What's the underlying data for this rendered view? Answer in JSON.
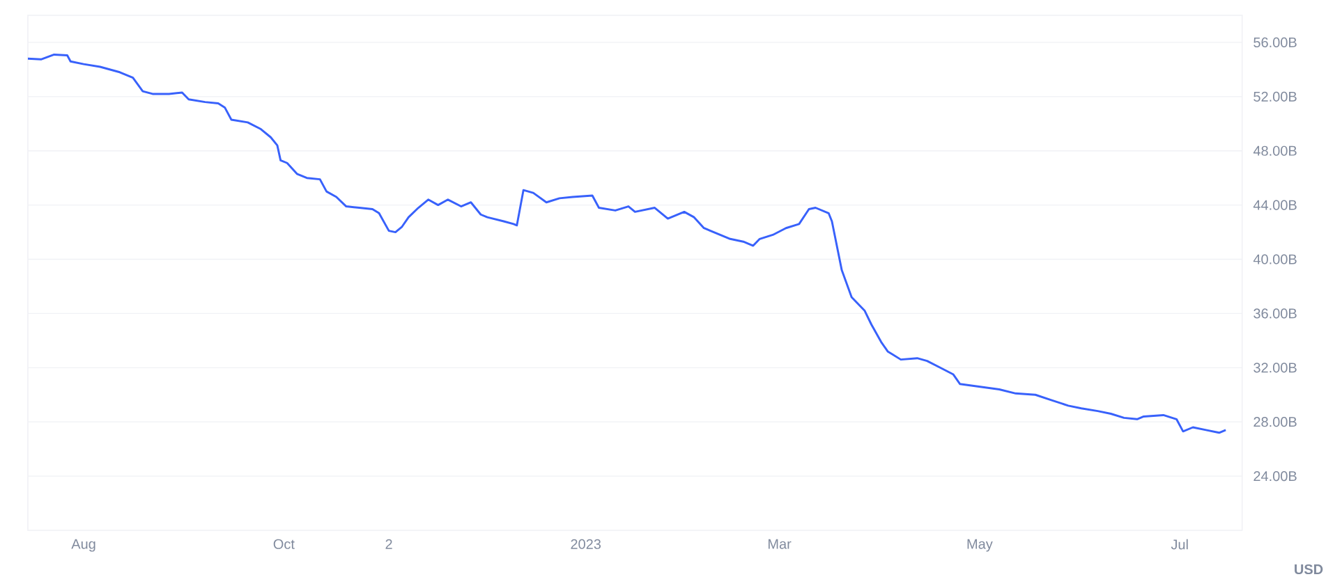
{
  "chart_data": {
    "type": "line",
    "ylabel": "USD",
    "grid": "y",
    "marker": "none",
    "line_style": "solid",
    "xlim": [
      "2022-07-15",
      "2023-07-20"
    ],
    "ylim": [
      20,
      58
    ],
    "xticks": [
      {
        "value": "2022-08-01",
        "label": "Aug"
      },
      {
        "value": "2022-10-01",
        "label": "Oct"
      },
      {
        "value": "2022-11-02",
        "label": "2"
      },
      {
        "value": "2023-01-01",
        "label": "2023"
      },
      {
        "value": "2023-03-01",
        "label": "Mar"
      },
      {
        "value": "2023-05-01",
        "label": "May"
      },
      {
        "value": "2023-07-01",
        "label": "Jul"
      }
    ],
    "yticks": [
      {
        "value": 24,
        "label": "24.00B"
      },
      {
        "value": 28,
        "label": "28.00B"
      },
      {
        "value": 32,
        "label": "32.00B"
      },
      {
        "value": 36,
        "label": "36.00B"
      },
      {
        "value": 40,
        "label": "40.00B"
      },
      {
        "value": 44,
        "label": "44.00B"
      },
      {
        "value": 48,
        "label": "48.00B"
      },
      {
        "value": 52,
        "label": "52.00B"
      },
      {
        "value": 56,
        "label": "56.00B"
      }
    ],
    "x": [
      "2022-07-15",
      "2022-07-19",
      "2022-07-23",
      "2022-07-27",
      "2022-07-28",
      "2022-08-01",
      "2022-08-06",
      "2022-08-12",
      "2022-08-16",
      "2022-08-19",
      "2022-08-22",
      "2022-08-27",
      "2022-08-31",
      "2022-09-02",
      "2022-09-07",
      "2022-09-11",
      "2022-09-13",
      "2022-09-15",
      "2022-09-20",
      "2022-09-24",
      "2022-09-27",
      "2022-09-29",
      "2022-09-30",
      "2022-10-02",
      "2022-10-05",
      "2022-10-08",
      "2022-10-12",
      "2022-10-14",
      "2022-10-17",
      "2022-10-20",
      "2022-10-24",
      "2022-10-28",
      "2022-10-30",
      "2022-11-02",
      "2022-11-04",
      "2022-11-06",
      "2022-11-08",
      "2022-11-11",
      "2022-11-14",
      "2022-11-17",
      "2022-11-20",
      "2022-11-24",
      "2022-11-27",
      "2022-11-30",
      "2022-12-02",
      "2022-12-07",
      "2022-12-10",
      "2022-12-11",
      "2022-12-13",
      "2022-12-16",
      "2022-12-20",
      "2022-12-24",
      "2022-12-28",
      "2023-01-03",
      "2023-01-05",
      "2023-01-10",
      "2023-01-14",
      "2023-01-16",
      "2023-01-22",
      "2023-01-26",
      "2023-01-31",
      "2023-02-03",
      "2023-02-06",
      "2023-02-10",
      "2023-02-14",
      "2023-02-18",
      "2023-02-21",
      "2023-02-23",
      "2023-02-27",
      "2023-03-03",
      "2023-03-07",
      "2023-03-10",
      "2023-03-12",
      "2023-03-16",
      "2023-03-17",
      "2023-03-20",
      "2023-03-23",
      "2023-03-27",
      "2023-03-29",
      "2023-04-01",
      "2023-04-03",
      "2023-04-07",
      "2023-04-12",
      "2023-04-15",
      "2023-04-19",
      "2023-04-23",
      "2023-04-25",
      "2023-05-01",
      "2023-05-07",
      "2023-05-12",
      "2023-05-18",
      "2023-05-23",
      "2023-05-28",
      "2023-06-01",
      "2023-06-06",
      "2023-06-10",
      "2023-06-14",
      "2023-06-18",
      "2023-06-20",
      "2023-06-26",
      "2023-06-30",
      "2023-07-02",
      "2023-07-05",
      "2023-07-09",
      "2023-07-13",
      "2023-07-15"
    ],
    "series": [
      {
        "color": "#3861fb",
        "values": [
          54.8,
          54.75,
          55.1,
          55.05,
          54.6,
          54.4,
          54.2,
          53.8,
          53.4,
          52.4,
          52.2,
          52.2,
          52.3,
          51.8,
          51.6,
          51.5,
          51.2,
          50.3,
          50.1,
          49.6,
          49.0,
          48.4,
          47.3,
          47.1,
          46.3,
          46.0,
          45.9,
          45.0,
          44.6,
          43.9,
          43.8,
          43.7,
          43.4,
          42.1,
          42.0,
          42.4,
          43.1,
          43.8,
          44.4,
          44.0,
          44.4,
          43.9,
          44.2,
          43.3,
          43.1,
          42.8,
          42.6,
          42.5,
          45.1,
          44.9,
          44.2,
          44.5,
          44.6,
          44.7,
          43.8,
          43.6,
          43.9,
          43.5,
          43.8,
          43.0,
          43.5,
          43.1,
          42.3,
          41.9,
          41.5,
          41.3,
          41.0,
          41.5,
          41.8,
          42.3,
          42.6,
          43.7,
          43.8,
          43.4,
          42.8,
          39.2,
          37.2,
          36.2,
          35.2,
          33.9,
          33.2,
          32.6,
          32.7,
          32.5,
          32.0,
          31.5,
          30.8,
          30.6,
          30.4,
          30.1,
          30.0,
          29.6,
          29.2,
          29.0,
          28.8,
          28.6,
          28.3,
          28.2,
          28.4,
          28.5,
          28.2,
          27.3,
          27.6,
          27.4,
          27.2,
          27.4
        ]
      }
    ]
  }
}
